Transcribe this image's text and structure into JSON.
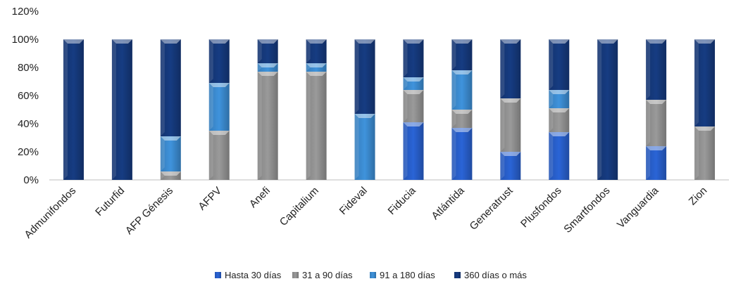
{
  "chart_data": {
    "type": "bar",
    "stacked": true,
    "categories": [
      "Admunifondos",
      "Futurfid",
      "AFP Génesis",
      "AFPV",
      "Anefi",
      "Capitalium",
      "Fideval",
      "Fiducia",
      "Atlántida",
      "Generatrust",
      "Plusfondos",
      "Smartfondos",
      "Vanguardia",
      "Zion"
    ],
    "series": [
      {
        "name": "Hasta 30 días",
        "color": "#2a64d6",
        "values": [
          0,
          0,
          0,
          0,
          0,
          0,
          0,
          41,
          37,
          20,
          34,
          0,
          24,
          0
        ]
      },
      {
        "name": "31 a 90 días",
        "color": "#9a9a9a",
        "values": [
          0,
          0,
          6,
          35,
          77,
          77,
          0,
          23,
          13,
          38,
          17,
          0,
          33,
          38
        ]
      },
      {
        "name": "91 a 180 días",
        "color": "#3f93dc",
        "values": [
          0,
          0,
          25,
          34,
          6,
          6,
          47,
          9,
          28,
          0,
          13,
          0,
          0,
          0
        ]
      },
      {
        "name": "360 días o más",
        "color": "#163c82",
        "values": [
          100,
          100,
          69,
          31,
          17,
          17,
          53,
          27,
          22,
          42,
          36,
          100,
          43,
          62
        ]
      }
    ],
    "yticks": [
      "0%",
      "20%",
      "40%",
      "60%",
      "80%",
      "100%",
      "120%"
    ],
    "ylim": [
      0,
      120
    ],
    "grid": false,
    "legend_position": "bottom"
  }
}
